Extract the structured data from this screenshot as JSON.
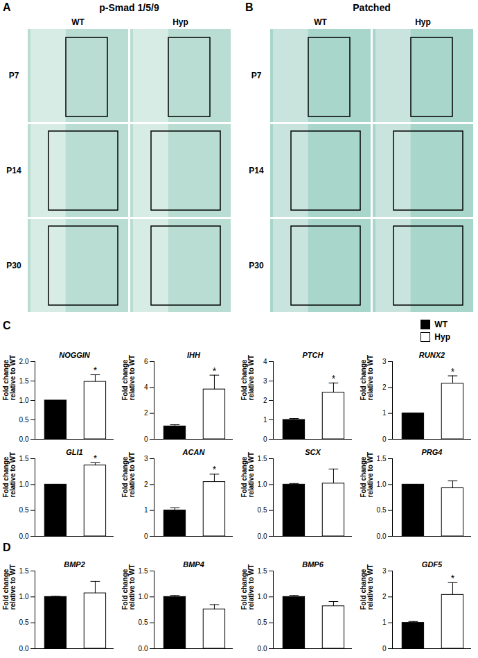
{
  "image_panels": [
    {
      "label": "A",
      "title": "p-Smad 1/5/9",
      "columns": [
        "WT",
        "Hyp"
      ],
      "rows": [
        "P7",
        "P14",
        "P30"
      ]
    },
    {
      "label": "B",
      "title": "Patched",
      "columns": [
        "WT",
        "Hyp"
      ],
      "rows": [
        "P7",
        "P14",
        "P30"
      ]
    }
  ],
  "legend": [
    {
      "name": "WT",
      "color": "#000000"
    },
    {
      "name": "Hyp",
      "color": "#ffffff"
    }
  ],
  "chart_data": [
    {
      "type": "bar",
      "panel": "C",
      "title": "NOGGIN",
      "ylabel": "Fold change relative to WT",
      "categories": [
        null,
        null
      ],
      "colors": [
        "#000000",
        "#ffffff"
      ],
      "values": [
        1.0,
        1.48
      ],
      "errors": [
        0.0,
        0.18
      ],
      "annotations": [
        null,
        "*"
      ],
      "ylim": [
        0,
        2
      ],
      "yticks": [
        {
          "value": 0,
          "label": "0.0"
        },
        {
          "value": 0.5,
          "label": "0.5"
        },
        {
          "value": 1,
          "label": "1.0"
        },
        {
          "value": 1.5,
          "label": "1.5"
        },
        {
          "value": 2,
          "label": "2.0"
        }
      ],
      "tick_labels": "y"
    },
    {
      "type": "bar",
      "panel": "C",
      "title": "IHH",
      "ylabel": "Fold change relative to WT",
      "categories": [
        null,
        null
      ],
      "colors": [
        "#000000",
        "#ffffff"
      ],
      "values": [
        1.0,
        3.85
      ],
      "errors": [
        0.12,
        1.1
      ],
      "annotations": [
        null,
        "*"
      ],
      "ylim": [
        0,
        6
      ],
      "yticks": [
        0,
        2,
        4,
        6
      ],
      "tick_labels": "y"
    },
    {
      "type": "bar",
      "panel": "C",
      "title": "PTCH",
      "ylabel": "Fold change relative to WT",
      "categories": [
        null,
        null
      ],
      "colors": [
        "#000000",
        "#ffffff"
      ],
      "values": [
        1.0,
        2.4
      ],
      "errors": [
        0.07,
        0.5
      ],
      "annotations": [
        null,
        "*"
      ],
      "ylim": [
        0,
        4
      ],
      "yticks": [
        0,
        1,
        2,
        3,
        4
      ],
      "tick_labels": "y"
    },
    {
      "type": "bar",
      "panel": "C",
      "title": "RUNX2",
      "ylabel": "Fold change relative to WT",
      "categories": [
        null,
        null
      ],
      "colors": [
        "#000000",
        "#ffffff"
      ],
      "values": [
        1.0,
        2.15
      ],
      "errors": [
        0.0,
        0.3
      ],
      "annotations": [
        null,
        "*"
      ],
      "ylim": [
        0,
        3
      ],
      "yticks": [
        0,
        1,
        2,
        3
      ],
      "tick_labels": "y"
    },
    {
      "type": "bar",
      "panel": "C",
      "title": "GLI1",
      "ylabel": "Fold change relative to WT",
      "categories": [
        null,
        null
      ],
      "colors": [
        "#000000",
        "#ffffff"
      ],
      "values": [
        1.0,
        1.37
      ],
      "errors": [
        0.0,
        0.05
      ],
      "annotations": [
        null,
        "*"
      ],
      "ylim": [
        0,
        1.5
      ],
      "yticks": [
        {
          "value": 0,
          "label": "0.0"
        },
        {
          "value": 0.5,
          "label": "0.5"
        },
        {
          "value": 1,
          "label": "1.0"
        },
        {
          "value": 1.5,
          "label": "1.5"
        }
      ],
      "tick_labels": "y"
    },
    {
      "type": "bar",
      "panel": "C",
      "title": "ACAN",
      "ylabel": "Fold change relative to WT",
      "categories": [
        null,
        null
      ],
      "colors": [
        "#000000",
        "#ffffff"
      ],
      "values": [
        1.0,
        2.1
      ],
      "errors": [
        0.1,
        0.3
      ],
      "annotations": [
        null,
        "*"
      ],
      "ylim": [
        0,
        3
      ],
      "yticks": [
        0,
        1,
        2,
        3
      ],
      "tick_labels": "y"
    },
    {
      "type": "bar",
      "panel": "C",
      "title": "SCX",
      "ylabel": "Fold change relative to WT",
      "categories": [
        null,
        null
      ],
      "colors": [
        "#000000",
        "#ffffff"
      ],
      "values": [
        1.0,
        1.02
      ],
      "errors": [
        0.02,
        0.28
      ],
      "annotations": [
        null,
        null
      ],
      "ylim": [
        0,
        1.5
      ],
      "yticks": [
        {
          "value": 0,
          "label": "0.0"
        },
        {
          "value": 0.5,
          "label": "0.5"
        },
        {
          "value": 1,
          "label": "1.0"
        },
        {
          "value": 1.5,
          "label": "1.5"
        }
      ],
      "tick_labels": "y"
    },
    {
      "type": "bar",
      "panel": "C",
      "title": "PRG4",
      "ylabel": "Fold change relative to WT",
      "categories": [
        null,
        null
      ],
      "colors": [
        "#000000",
        "#ffffff"
      ],
      "values": [
        1.0,
        0.93
      ],
      "errors": [
        0.0,
        0.14
      ],
      "annotations": [
        null,
        null
      ],
      "ylim": [
        0,
        1.5
      ],
      "yticks": [
        {
          "value": 0,
          "label": "0.0"
        },
        {
          "value": 0.5,
          "label": "0.5"
        },
        {
          "value": 1,
          "label": "1.0"
        },
        {
          "value": 1.5,
          "label": "1.5"
        }
      ],
      "tick_labels": "y"
    },
    {
      "type": "bar",
      "panel": "D",
      "title": "BMP2",
      "ylabel": "Fold change relative to WT",
      "categories": [
        null,
        null
      ],
      "colors": [
        "#000000",
        "#ffffff"
      ],
      "values": [
        1.0,
        1.07
      ],
      "errors": [
        0.01,
        0.23
      ],
      "annotations": [
        null,
        null
      ],
      "ylim": [
        0,
        1.5
      ],
      "yticks": [
        {
          "value": 0,
          "label": "0.0"
        },
        {
          "value": 0.5,
          "label": "0.5"
        },
        {
          "value": 1,
          "label": "1.0"
        },
        {
          "value": 1.5,
          "label": "1.5"
        }
      ],
      "tick_labels": "y"
    },
    {
      "type": "bar",
      "panel": "D",
      "title": "BMP4",
      "ylabel": "Fold change relative to WT",
      "categories": [
        null,
        null
      ],
      "colors": [
        "#000000",
        "#ffffff"
      ],
      "values": [
        1.0,
        0.76
      ],
      "errors": [
        0.03,
        0.09
      ],
      "annotations": [
        null,
        null
      ],
      "ylim": [
        0,
        1.5
      ],
      "yticks": [
        {
          "value": 0,
          "label": "0.0"
        },
        {
          "value": 0.5,
          "label": "0.5"
        },
        {
          "value": 1,
          "label": "1.0"
        },
        {
          "value": 1.5,
          "label": "1.5"
        }
      ],
      "tick_labels": "y"
    },
    {
      "type": "bar",
      "panel": "D",
      "title": "BMP6",
      "ylabel": "Fold change relative to WT",
      "categories": [
        null,
        null
      ],
      "colors": [
        "#000000",
        "#ffffff"
      ],
      "values": [
        1.0,
        0.82
      ],
      "errors": [
        0.03,
        0.09
      ],
      "annotations": [
        null,
        null
      ],
      "ylim": [
        0,
        1.5
      ],
      "yticks": [
        {
          "value": 0,
          "label": "0.0"
        },
        {
          "value": 0.5,
          "label": "0.5"
        },
        {
          "value": 1,
          "label": "1.0"
        },
        {
          "value": 1.5,
          "label": "1.5"
        }
      ],
      "tick_labels": "y"
    },
    {
      "type": "bar",
      "panel": "D",
      "title": "GDF5",
      "ylabel": "Fold change relative to WT",
      "categories": [
        null,
        null
      ],
      "colors": [
        "#000000",
        "#ffffff"
      ],
      "values": [
        1.0,
        2.08
      ],
      "errors": [
        0.05,
        0.47
      ],
      "annotations": [
        null,
        "*"
      ],
      "ylim": [
        0,
        3
      ],
      "yticks": [
        0,
        1,
        2,
        3
      ],
      "tick_labels": "y"
    }
  ]
}
